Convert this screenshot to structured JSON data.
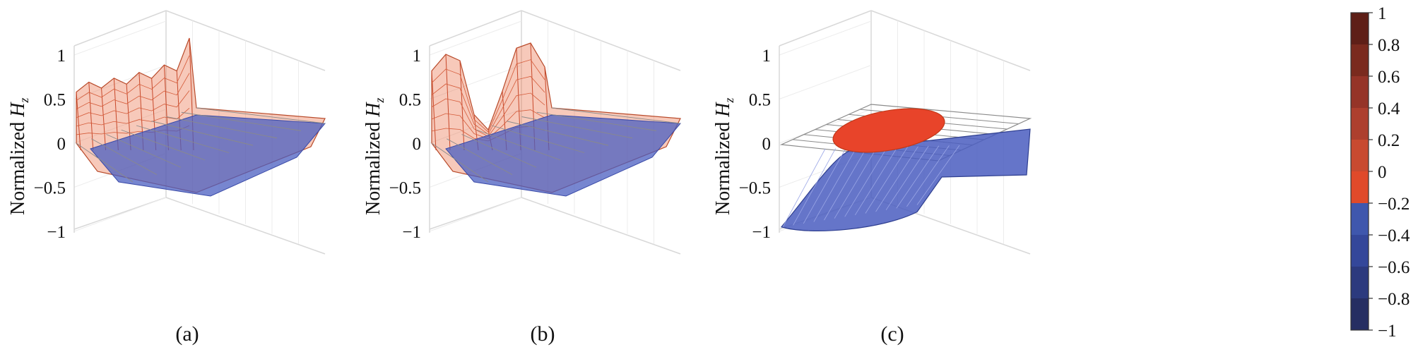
{
  "chart_data": [
    {
      "type": "surface",
      "panel_label": "(a)",
      "zlabel_prefix": "Normalized ",
      "zlabel_var": "H",
      "zlabel_sub": "z",
      "zlim": [
        -1,
        1
      ],
      "zticks": [
        1,
        0.5,
        0,
        -0.5,
        -1
      ],
      "ztick_labels": [
        "1",
        "0.5",
        "0",
        "−0.5",
        "−1"
      ],
      "profile_y": [
        0.58,
        0.68,
        0.6,
        0.7,
        0.62,
        0.74,
        0.66,
        0.8,
        0.72,
        1.08
      ],
      "profile_shape": "flat"
    },
    {
      "type": "surface",
      "panel_label": "(b)",
      "zlabel_prefix": "Normalized ",
      "zlabel_var": "H",
      "zlabel_sub": "z",
      "zlim": [
        -1,
        1
      ],
      "zticks": [
        1,
        0.5,
        0,
        -0.5,
        -1
      ],
      "ztick_labels": [
        "1",
        "0.5",
        "0",
        "−0.5",
        "−1"
      ],
      "profile_y": [
        0.82,
        1.0,
        0.92,
        0.3,
        0.12,
        0.55,
        1.03,
        1.08,
        0.8
      ],
      "profile_shape": "flat"
    },
    {
      "type": "surface",
      "panel_label": "(c)",
      "zlabel_prefix": "Normalized ",
      "zlabel_var": "H",
      "zlabel_sub": "z",
      "zlim": [
        -1,
        1
      ],
      "zticks": [
        1,
        0.5,
        0,
        -0.5,
        -1
      ],
      "ztick_labels": [
        "1",
        "0.5",
        "0",
        "−0.5",
        "−1"
      ],
      "profile_y": [
        -0.95,
        -0.85,
        -0.6,
        -0.38,
        -0.28
      ],
      "profile_shape": "trough"
    }
  ],
  "colorbar": {
    "levels": [
      1,
      0.8,
      0.6,
      0.4,
      0.2,
      0,
      -0.2,
      -0.4,
      -0.6,
      -0.8,
      -1
    ],
    "labels": [
      "1",
      "0.8",
      "0.6",
      "0.4",
      "0.2",
      "0",
      "−0.2",
      "−0.4",
      "−0.6",
      "−0.8",
      "−1"
    ],
    "colors": [
      "#5e1f17",
      "#7a2a1e",
      "#953428",
      "#ad3f2e",
      "#c84a30",
      "#e04a2a",
      "#3f57ad",
      "#34479a",
      "#2c3a7e",
      "#262e62",
      "#1f2446"
    ]
  }
}
